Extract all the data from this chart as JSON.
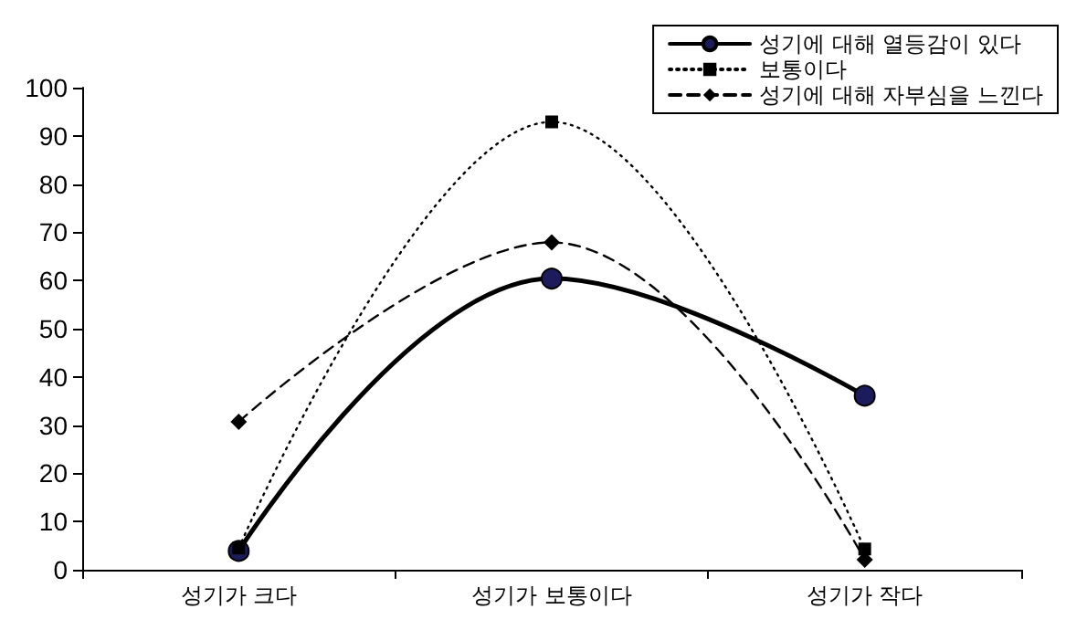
{
  "chart_data": {
    "type": "line",
    "categories": [
      "성기가 크다",
      "성기가 보통이다",
      "성기가 작다"
    ],
    "series": [
      {
        "name": "성기에 대해 열등감이 있다",
        "color": "#000000",
        "values": [
          3.9,
          60.4,
          36.1
        ],
        "marker": "circle",
        "line_style": "solid"
      },
      {
        "name": "보통이다",
        "color": "#000000",
        "values": [
          4.5,
          92.9,
          4.3
        ],
        "marker": "square",
        "line_style": "dotted"
      },
      {
        "name": "성기에 대해 자부심을 느낀다",
        "color": "#000000",
        "values": [
          30.7,
          67.9,
          2.1
        ],
        "marker": "diamond",
        "line_style": "dashed"
      }
    ],
    "ylim": [
      0,
      100
    ],
    "yticks": [
      0,
      10,
      20,
      30,
      40,
      50,
      60,
      70,
      80,
      90,
      100
    ],
    "grid": false,
    "legend": "top right"
  }
}
